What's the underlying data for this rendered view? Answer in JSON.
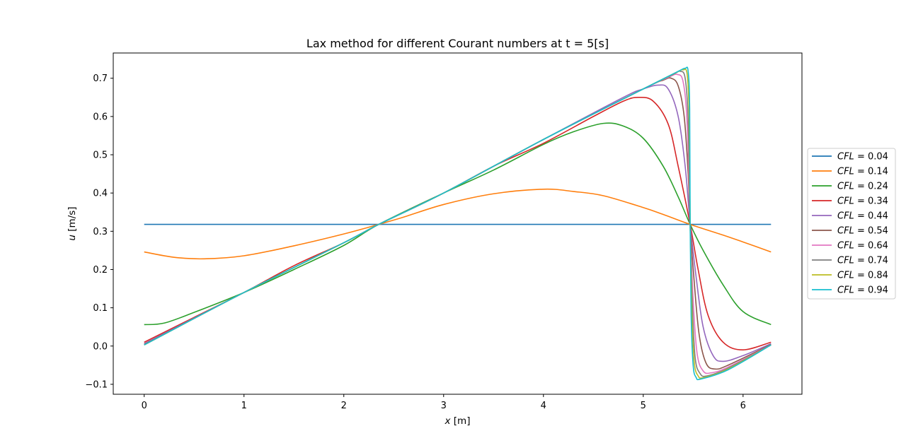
{
  "chart_data": {
    "type": "line",
    "title": "Lax method for different Courant numbers at t = 5[s]",
    "xlabel_var": "x",
    "xlabel_unit": " [m]",
    "ylabel_var": "u",
    "ylabel_unit": " [m/s]",
    "xlim": [
      -0.31,
      6.59
    ],
    "ylim": [
      -0.126,
      0.766
    ],
    "xticks": [
      "0",
      "1",
      "2",
      "3",
      "4",
      "5",
      "6"
    ],
    "yticks": [
      "−0.1",
      "0.0",
      "0.1",
      "0.2",
      "0.3",
      "0.4",
      "0.5",
      "0.6",
      "0.7"
    ],
    "legend_position": "center-right-outside",
    "series": [
      {
        "name_var": "CFL",
        "name_val": " = 0.04",
        "color": "#1f77b4",
        "points": [
          [
            0,
            0.318
          ],
          [
            6.28,
            0.318
          ]
        ]
      },
      {
        "name_var": "CFL",
        "name_val": " = 0.14",
        "color": "#ff7f0e",
        "points": [
          [
            0,
            0.246
          ],
          [
            0.3,
            0.232
          ],
          [
            0.6,
            0.228
          ],
          [
            1.0,
            0.236
          ],
          [
            1.5,
            0.262
          ],
          [
            2.0,
            0.293
          ],
          [
            2.35,
            0.318
          ],
          [
            2.6,
            0.337
          ],
          [
            3.0,
            0.37
          ],
          [
            3.5,
            0.398
          ],
          [
            4.0,
            0.41
          ],
          [
            4.3,
            0.404
          ],
          [
            4.6,
            0.393
          ],
          [
            5.0,
            0.362
          ],
          [
            5.2,
            0.344
          ],
          [
            5.47,
            0.318
          ],
          [
            5.8,
            0.29
          ],
          [
            6.0,
            0.272
          ],
          [
            6.28,
            0.246
          ]
        ]
      },
      {
        "name_var": "CFL",
        "name_val": " = 0.24",
        "color": "#2ca02c",
        "points": [
          [
            0,
            0.056
          ],
          [
            0.2,
            0.06
          ],
          [
            0.5,
            0.088
          ],
          [
            1.0,
            0.14
          ],
          [
            1.5,
            0.2
          ],
          [
            2.0,
            0.263
          ],
          [
            2.35,
            0.318
          ],
          [
            3.0,
            0.4
          ],
          [
            3.5,
            0.46
          ],
          [
            4.0,
            0.527
          ],
          [
            4.3,
            0.56
          ],
          [
            4.6,
            0.582
          ],
          [
            4.8,
            0.575
          ],
          [
            5.0,
            0.543
          ],
          [
            5.2,
            0.47
          ],
          [
            5.35,
            0.39
          ],
          [
            5.47,
            0.318
          ],
          [
            5.6,
            0.25
          ],
          [
            5.8,
            0.16
          ],
          [
            6.0,
            0.09
          ],
          [
            6.28,
            0.056
          ]
        ]
      },
      {
        "name_var": "CFL",
        "name_val": " = 0.34",
        "color": "#d62728",
        "points": [
          [
            0,
            0.01
          ],
          [
            0.5,
            0.075
          ],
          [
            1.0,
            0.14
          ],
          [
            1.5,
            0.21
          ],
          [
            2.0,
            0.27
          ],
          [
            2.35,
            0.318
          ],
          [
            3.0,
            0.4
          ],
          [
            3.5,
            0.47
          ],
          [
            4.0,
            0.53
          ],
          [
            4.5,
            0.6
          ],
          [
            4.8,
            0.64
          ],
          [
            4.95,
            0.65
          ],
          [
            5.1,
            0.64
          ],
          [
            5.25,
            0.58
          ],
          [
            5.35,
            0.47
          ],
          [
            5.47,
            0.318
          ],
          [
            5.55,
            0.2
          ],
          [
            5.65,
            0.08
          ],
          [
            5.8,
            0.01
          ],
          [
            6.0,
            -0.01
          ],
          [
            6.28,
            0.01
          ]
        ]
      },
      {
        "name_var": "CFL",
        "name_val": " = 0.44",
        "color": "#9467bd",
        "points": [
          [
            0,
            0.006
          ],
          [
            1.0,
            0.14
          ],
          [
            2.0,
            0.27
          ],
          [
            2.35,
            0.318
          ],
          [
            3.0,
            0.4
          ],
          [
            4.0,
            0.54
          ],
          [
            4.8,
            0.65
          ],
          [
            5.0,
            0.672
          ],
          [
            5.15,
            0.682
          ],
          [
            5.25,
            0.672
          ],
          [
            5.35,
            0.6
          ],
          [
            5.42,
            0.47
          ],
          [
            5.47,
            0.318
          ],
          [
            5.53,
            0.18
          ],
          [
            5.6,
            0.05
          ],
          [
            5.7,
            -0.025
          ],
          [
            5.8,
            -0.04
          ],
          [
            6.0,
            -0.025
          ],
          [
            6.28,
            0.006
          ]
        ]
      },
      {
        "name_var": "CFL",
        "name_val": " = 0.54",
        "color": "#8c564b",
        "points": [
          [
            0,
            0.004
          ],
          [
            1.0,
            0.14
          ],
          [
            2.0,
            0.27
          ],
          [
            2.35,
            0.318
          ],
          [
            3.0,
            0.4
          ],
          [
            4.0,
            0.54
          ],
          [
            5.0,
            0.672
          ],
          [
            5.2,
            0.695
          ],
          [
            5.28,
            0.7
          ],
          [
            5.35,
            0.68
          ],
          [
            5.41,
            0.6
          ],
          [
            5.45,
            0.45
          ],
          [
            5.47,
            0.318
          ],
          [
            5.51,
            0.17
          ],
          [
            5.56,
            0.03
          ],
          [
            5.63,
            -0.045
          ],
          [
            5.72,
            -0.06
          ],
          [
            5.85,
            -0.05
          ],
          [
            6.28,
            0.004
          ]
        ]
      },
      {
        "name_var": "CFL",
        "name_val": " = 0.64",
        "color": "#e377c2",
        "points": [
          [
            0,
            0.003
          ],
          [
            1.0,
            0.14
          ],
          [
            2.0,
            0.27
          ],
          [
            2.35,
            0.318
          ],
          [
            3.0,
            0.4
          ],
          [
            4.0,
            0.54
          ],
          [
            5.0,
            0.672
          ],
          [
            5.25,
            0.702
          ],
          [
            5.34,
            0.71
          ],
          [
            5.4,
            0.69
          ],
          [
            5.44,
            0.58
          ],
          [
            5.47,
            0.318
          ],
          [
            5.5,
            0.12
          ],
          [
            5.54,
            -0.02
          ],
          [
            5.6,
            -0.065
          ],
          [
            5.68,
            -0.07
          ],
          [
            5.85,
            -0.055
          ],
          [
            6.28,
            0.003
          ]
        ]
      },
      {
        "name_var": "CFL",
        "name_val": " = 0.74",
        "color": "#7f7f7f",
        "points": [
          [
            0,
            0.003
          ],
          [
            1.0,
            0.14
          ],
          [
            2.0,
            0.27
          ],
          [
            2.35,
            0.318
          ],
          [
            3.0,
            0.4
          ],
          [
            4.0,
            0.54
          ],
          [
            5.0,
            0.672
          ],
          [
            5.3,
            0.71
          ],
          [
            5.37,
            0.718
          ],
          [
            5.42,
            0.7
          ],
          [
            5.45,
            0.59
          ],
          [
            5.47,
            0.318
          ],
          [
            5.49,
            0.12
          ],
          [
            5.52,
            -0.03
          ],
          [
            5.57,
            -0.072
          ],
          [
            5.64,
            -0.078
          ],
          [
            5.85,
            -0.058
          ],
          [
            6.28,
            0.003
          ]
        ]
      },
      {
        "name_var": "CFL",
        "name_val": " = 0.84",
        "color": "#bcbd22",
        "points": [
          [
            0,
            0.003
          ],
          [
            1.0,
            0.14
          ],
          [
            2.0,
            0.27
          ],
          [
            2.35,
            0.318
          ],
          [
            3.0,
            0.4
          ],
          [
            4.0,
            0.54
          ],
          [
            5.0,
            0.672
          ],
          [
            5.33,
            0.715
          ],
          [
            5.4,
            0.722
          ],
          [
            5.44,
            0.71
          ],
          [
            5.46,
            0.6
          ],
          [
            5.47,
            0.318
          ],
          [
            5.485,
            0.1
          ],
          [
            5.51,
            -0.04
          ],
          [
            5.55,
            -0.078
          ],
          [
            5.61,
            -0.082
          ],
          [
            5.85,
            -0.06
          ],
          [
            6.28,
            0.003
          ]
        ]
      },
      {
        "name_var": "CFL",
        "name_val": " = 0.94",
        "color": "#17becf",
        "points": [
          [
            0,
            0.003
          ],
          [
            1.0,
            0.14
          ],
          [
            2.0,
            0.27
          ],
          [
            2.35,
            0.318
          ],
          [
            3.0,
            0.4
          ],
          [
            4.0,
            0.54
          ],
          [
            5.0,
            0.672
          ],
          [
            5.35,
            0.718
          ],
          [
            5.42,
            0.726
          ],
          [
            5.45,
            0.718
          ],
          [
            5.465,
            0.62
          ],
          [
            5.47,
            0.318
          ],
          [
            5.48,
            0.08
          ],
          [
            5.5,
            -0.05
          ],
          [
            5.53,
            -0.082
          ],
          [
            5.58,
            -0.086
          ],
          [
            5.85,
            -0.062
          ],
          [
            6.28,
            0.003
          ]
        ]
      }
    ]
  }
}
